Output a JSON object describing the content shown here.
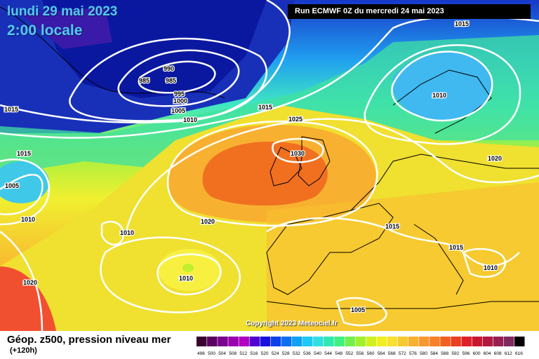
{
  "header": {
    "date_line": "lundi 29 mai 2023",
    "time_line": "2:00 locale",
    "run_info": "Run ECMWF 0Z du mercredi 24 mai 2023"
  },
  "copyright": "Copyright 2023 Meteociel.fr",
  "legend": {
    "title": "Géop. z500, pression niveau mer",
    "subtitle": "(+120h)",
    "scale_values": [
      "496",
      "500",
      "504",
      "508",
      "512",
      "516",
      "520",
      "524",
      "528",
      "532",
      "536",
      "540",
      "544",
      "548",
      "552",
      "556",
      "560",
      "564",
      "568",
      "572",
      "576",
      "580",
      "584",
      "588",
      "592",
      "596",
      "600",
      "604",
      "608",
      "612",
      "616"
    ],
    "scale_colors": [
      "#3a0030",
      "#5a0060",
      "#7a0090",
      "#9a00b0",
      "#b000c0",
      "#5000d0",
      "#1a10e0",
      "#0a40e8",
      "#0a70f0",
      "#10a0f5",
      "#20c8f8",
      "#30e0e0",
      "#30e8b0",
      "#40f080",
      "#70f050",
      "#a0f030",
      "#d0f020",
      "#f0f020",
      "#f8e030",
      "#f8c830",
      "#f8b030",
      "#f89830",
      "#f88028",
      "#f06020",
      "#e84020",
      "#e02028",
      "#c81830",
      "#b01840",
      "#982050",
      "#802860",
      "#000000"
    ]
  },
  "isobars": [
    {
      "id": "pressure-985a",
      "text": "985"
    },
    {
      "id": "pressure-990",
      "text": "990"
    },
    {
      "id": "pressure-985b",
      "text": "985"
    },
    {
      "id": "pressure-995",
      "text": "995"
    },
    {
      "id": "pressure-1000",
      "text": "1000"
    },
    {
      "id": "pressure-1005a",
      "text": "1005"
    },
    {
      "id": "pressure-1010a",
      "text": "1010"
    },
    {
      "id": "pressure-1015a",
      "text": "1015"
    },
    {
      "id": "pressure-1015b",
      "text": "1015"
    },
    {
      "id": "pressure-1025",
      "text": "1025"
    },
    {
      "id": "pressure-1030",
      "text": "1030"
    },
    {
      "id": "pressure-1015c",
      "text": "1015"
    },
    {
      "id": "pressure-1010b",
      "text": "1010"
    },
    {
      "id": "pressure-1020a",
      "text": "1020"
    },
    {
      "id": "pressure-1015d",
      "text": "1015"
    },
    {
      "id": "pressure-1005b",
      "text": "1005"
    },
    {
      "id": "pressure-1010c",
      "text": "1010"
    },
    {
      "id": "pressure-1010d",
      "text": "1010"
    },
    {
      "id": "pressure-1020b",
      "text": "1020"
    },
    {
      "id": "pressure-1010e",
      "text": "1010"
    },
    {
      "id": "pressure-1020c",
      "text": "1020"
    },
    {
      "id": "pressure-1015e",
      "text": "1015"
    },
    {
      "id": "pressure-1015f",
      "text": "1015"
    },
    {
      "id": "pressure-1010f",
      "text": "1010"
    },
    {
      "id": "pressure-1005c",
      "text": "1005"
    }
  ]
}
